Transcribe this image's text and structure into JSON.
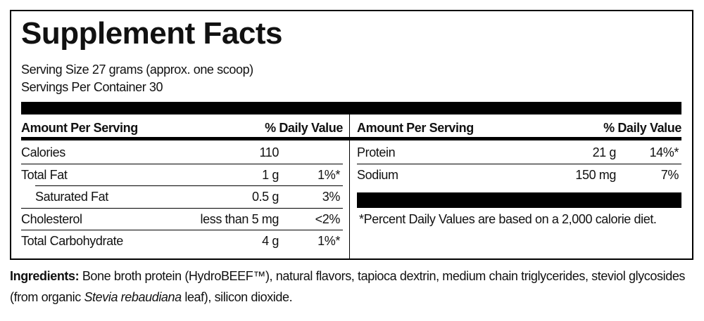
{
  "title": "Supplement Facts",
  "serving_size": "Serving Size 27 grams (approx. one scoop)",
  "servings_per_container": "Servings Per Container 30",
  "left_table": {
    "header": [
      "Amount Per Serving",
      "% Daily Value"
    ],
    "rows": [
      {
        "name": "Calories",
        "amount": "110"
      },
      {
        "name": "Total Fat",
        "amount": "1 g",
        "dv": "1%*"
      },
      {
        "name": "Saturated Fat",
        "amount": "0.5 g",
        "dv": "3%",
        "indent": true
      },
      {
        "name": "Cholesterol",
        "amount": "less than 5 mg",
        "dv": "<2%"
      },
      {
        "name": "Total Carbohydrate",
        "amount": "4 g",
        "dv": "1%*"
      }
    ]
  },
  "right_table": {
    "header": [
      "Amount Per Serving",
      "% Daily Value"
    ],
    "rows": [
      {
        "name": "Protein",
        "amount": "21 g",
        "dv": "14%*"
      },
      {
        "name": "Sodium",
        "amount": "150 mg",
        "dv": "7%"
      }
    ],
    "footnote": "*Percent Daily Values are based on a 2,000 calorie diet."
  },
  "ingredients": {
    "label": "Ingredients:",
    "text": [
      "Bone broth protein (HydroBEEF™), natural flavors, tapioca dextrin, medium chain triglycerides, steviol glycosides (from organic ",
      "Stevia rebaudiana",
      " leaf), silicon dioxide."
    ]
  }
}
